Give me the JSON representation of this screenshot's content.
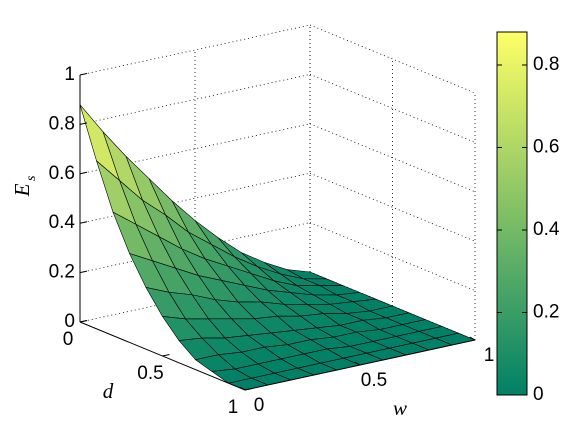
{
  "chart_data": {
    "type": "surface",
    "xlabel": "w",
    "ylabel": "d",
    "zlabel": "E",
    "zlabel_subscript": "s",
    "x": [
      0,
      0.1,
      0.2,
      0.3,
      0.4,
      0.5,
      0.6,
      0.7,
      0.8,
      0.9,
      1
    ],
    "y": [
      0,
      0.1,
      0.2,
      0.3,
      0.4,
      0.5,
      0.6,
      0.7,
      0.8,
      0.9,
      1
    ],
    "z": [
      [
        0.88,
        0.75,
        0.63,
        0.52,
        0.41,
        0.31,
        0.22,
        0.14,
        0.08,
        0.03,
        0
      ],
      [
        0.68,
        0.58,
        0.48,
        0.4,
        0.31,
        0.24,
        0.17,
        0.11,
        0.06,
        0.02,
        0
      ],
      [
        0.5,
        0.43,
        0.36,
        0.29,
        0.23,
        0.18,
        0.13,
        0.08,
        0.04,
        0.02,
        0
      ],
      [
        0.36,
        0.31,
        0.26,
        0.21,
        0.17,
        0.13,
        0.09,
        0.06,
        0.03,
        0.01,
        0
      ],
      [
        0.25,
        0.21,
        0.18,
        0.14,
        0.11,
        0.09,
        0.06,
        0.04,
        0.02,
        0.01,
        0
      ],
      [
        0.16,
        0.13,
        0.11,
        0.09,
        0.07,
        0.06,
        0.04,
        0.03,
        0.01,
        0,
        0
      ],
      [
        0.09,
        0.08,
        0.06,
        0.05,
        0.04,
        0.03,
        0.02,
        0.01,
        0.01,
        0,
        0
      ],
      [
        0.04,
        0.04,
        0.03,
        0.03,
        0.02,
        0.02,
        0.01,
        0.01,
        0,
        0,
        0
      ],
      [
        0.02,
        0.01,
        0.01,
        0.01,
        0.01,
        0.01,
        0,
        0,
        0,
        0,
        0
      ],
      [
        0,
        0,
        0,
        0,
        0,
        0,
        0,
        0,
        0,
        0,
        0
      ],
      [
        0,
        0,
        0,
        0,
        0,
        0,
        0,
        0,
        0,
        0,
        0
      ]
    ],
    "xlim": [
      0,
      1
    ],
    "ylim": [
      0,
      1
    ],
    "zlim": [
      0,
      1
    ],
    "xticks": [
      0,
      0.5,
      1
    ],
    "yticks": [
      0,
      0.5,
      1
    ],
    "zticks": [
      0,
      0.2,
      0.4,
      0.6,
      0.8,
      1
    ],
    "grid": true,
    "edge_color": "#000000",
    "colormap": [
      "#008066",
      "#ffff66"
    ],
    "colorbar": {
      "clim": [
        0,
        0.88
      ],
      "ticks": [
        0,
        0.2,
        0.4,
        0.6,
        0.8
      ]
    }
  }
}
